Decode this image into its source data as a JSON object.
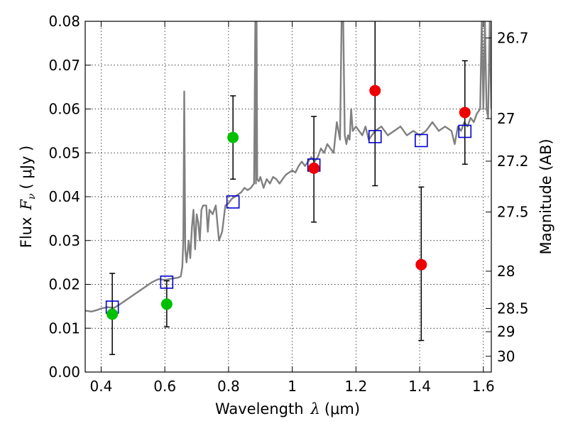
{
  "chart_data": {
    "type": "scatter",
    "xlabel": {
      "pre": "Wavelength",
      "sym": "λ",
      "post": "(μm)"
    },
    "ylabel": {
      "pre": "Flux",
      "sym": "F",
      "sub": "ν",
      "post": "( μJy )"
    },
    "y2label": "Magnitude (AB)",
    "xlim": [
      0.35,
      1.625
    ],
    "ylim": [
      0.0,
      0.08
    ],
    "grid": true,
    "x_ticks": [
      0.4,
      0.6,
      0.8,
      1.0,
      1.2,
      1.4,
      1.6
    ],
    "x_tick_labels": [
      "0.4",
      "0.6",
      "0.8",
      "1",
      "1.2",
      "1.4",
      "1.6"
    ],
    "y_ticks": [
      0.0,
      0.01,
      0.02,
      0.03,
      0.04,
      0.05,
      0.06,
      0.07,
      0.08
    ],
    "y_tick_labels": [
      "0.00",
      "0.01",
      "0.02",
      "0.03",
      "0.04",
      "0.05",
      "0.06",
      "0.07",
      "0.08"
    ],
    "y2_ticks": [
      {
        "label": "26.7",
        "flux": 0.0762
      },
      {
        "label": "27",
        "flux": 0.0578
      },
      {
        "label": "27.2",
        "flux": 0.0481
      },
      {
        "label": "27.5",
        "flux": 0.0365
      },
      {
        "label": "28",
        "flux": 0.023
      },
      {
        "label": "28.5",
        "flux": 0.0145
      },
      {
        "label": "29",
        "flux": 0.0092
      },
      {
        "label": "30",
        "flux": 0.0036
      }
    ],
    "series": [
      {
        "kind": "model_spectrum",
        "color": "#808080",
        "x": [
          0.35,
          0.37,
          0.39,
          0.4,
          0.42,
          0.44,
          0.46,
          0.48,
          0.5,
          0.52,
          0.54,
          0.56,
          0.58,
          0.6,
          0.62,
          0.64,
          0.65,
          0.655,
          0.658,
          0.661,
          0.664,
          0.668,
          0.675,
          0.68,
          0.685,
          0.69,
          0.695,
          0.7,
          0.705,
          0.71,
          0.715,
          0.72,
          0.73,
          0.735,
          0.74,
          0.75,
          0.76,
          0.77,
          0.78,
          0.79,
          0.8,
          0.81,
          0.82,
          0.83,
          0.84,
          0.85,
          0.86,
          0.87,
          0.88,
          0.884,
          0.886,
          0.888,
          0.89,
          0.895,
          0.9,
          0.91,
          0.92,
          0.93,
          0.94,
          0.95,
          0.96,
          0.97,
          0.98,
          0.99,
          1.0,
          1.01,
          1.02,
          1.03,
          1.04,
          1.05,
          1.06,
          1.07,
          1.08,
          1.09,
          1.1,
          1.11,
          1.12,
          1.13,
          1.14,
          1.15,
          1.155,
          1.16,
          1.165,
          1.17,
          1.175,
          1.18,
          1.185,
          1.19,
          1.2,
          1.21,
          1.22,
          1.23,
          1.24,
          1.25,
          1.26,
          1.28,
          1.3,
          1.32,
          1.34,
          1.36,
          1.38,
          1.4,
          1.42,
          1.44,
          1.46,
          1.48,
          1.5,
          1.51,
          1.52,
          1.53,
          1.54,
          1.55,
          1.56,
          1.57,
          1.58,
          1.59,
          1.595,
          1.6,
          1.605,
          1.61,
          1.615,
          1.62,
          1.625
        ],
        "y": [
          0.014,
          0.0138,
          0.0142,
          0.0145,
          0.0148,
          0.0146,
          0.0155,
          0.0165,
          0.0175,
          0.0185,
          0.0195,
          0.0205,
          0.0212,
          0.021,
          0.0213,
          0.0215,
          0.0218,
          0.024,
          0.03,
          0.064,
          0.028,
          0.025,
          0.03,
          0.026,
          0.033,
          0.037,
          0.028,
          0.036,
          0.034,
          0.03,
          0.037,
          0.038,
          0.038,
          0.032,
          0.037,
          0.036,
          0.038,
          0.03,
          0.032,
          0.038,
          0.0385,
          0.0395,
          0.04,
          0.0405,
          0.041,
          0.042,
          0.0415,
          0.042,
          0.043,
          0.08,
          0.043,
          0.08,
          0.044,
          0.0435,
          0.0445,
          0.042,
          0.044,
          0.043,
          0.0445,
          0.044,
          0.043,
          0.044,
          0.045,
          0.0455,
          0.046,
          0.0455,
          0.047,
          0.048,
          0.047,
          0.048,
          0.049,
          0.048,
          0.049,
          0.051,
          0.05,
          0.052,
          0.051,
          0.05,
          0.057,
          0.053,
          0.08,
          0.08,
          0.054,
          0.052,
          0.054,
          0.053,
          0.06,
          0.055,
          0.056,
          0.055,
          0.054,
          0.056,
          0.053,
          0.054,
          0.055,
          0.056,
          0.054,
          0.055,
          0.056,
          0.054,
          0.055,
          0.054,
          0.055,
          0.057,
          0.055,
          0.056,
          0.055,
          0.052,
          0.056,
          0.055,
          0.057,
          0.056,
          0.058,
          0.057,
          0.059,
          0.06,
          0.08,
          0.06,
          0.08,
          0.06,
          0.058,
          0.08,
          0.06
        ]
      },
      {
        "kind": "model_photometry",
        "marker": "square-open",
        "color": "#0000cc",
        "x": [
          0.435,
          0.606,
          0.814,
          1.068,
          1.26,
          1.405,
          1.542
        ],
        "y": [
          0.0148,
          0.0205,
          0.0388,
          0.0472,
          0.0537,
          0.0528,
          0.0549
        ]
      },
      {
        "kind": "hst_photometry_optical",
        "marker": "circle",
        "color": "#00c000",
        "x": [
          0.435,
          0.606,
          0.814
        ],
        "y": [
          0.0132,
          0.0155,
          0.0535
        ],
        "yerr_low": [
          0.004,
          0.0103,
          0.044
        ],
        "yerr_high": [
          0.0225,
          0.0208,
          0.063
        ]
      },
      {
        "kind": "hst_photometry_nir",
        "marker": "circle",
        "color": "#ee0000",
        "x": [
          1.068,
          1.26,
          1.405,
          1.542
        ],
        "y": [
          0.0465,
          0.0642,
          0.0245,
          0.0592
        ],
        "yerr_low": [
          0.0342,
          0.0425,
          0.0072,
          0.0474
        ],
        "yerr_high": [
          0.0583,
          0.08,
          0.0422,
          0.071
        ]
      }
    ]
  }
}
